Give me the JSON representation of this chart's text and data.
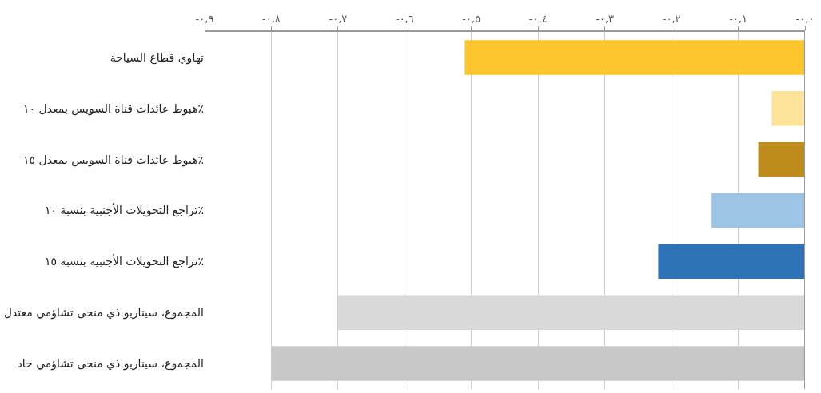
{
  "chart_data": {
    "type": "bar",
    "orientation": "horizontal",
    "categories": [
      "تهاوي قطاع السياحة",
      "هبوط عائدات قناة السويس بمعدل ١٠٪",
      "هبوط عائدات قناة السويس بمعدل ١٥٪",
      "تراجع التحويلات الأجنبية بنسبة ١٠٪",
      "تراجع التحويلات الأجنبية بنسبة ١٥٪",
      "المجموع، سيناريو ذي منحى تشاؤمي معتدل",
      "المجموع، سيناريو ذي منحى تشاؤمي حاد"
    ],
    "values": [
      -0.51,
      -0.05,
      -0.07,
      -0.14,
      -0.22,
      -0.7,
      -0.8
    ],
    "colors": [
      "#fcc62c",
      "#fde49a",
      "#c08b1d",
      "#9dc3e6",
      "#2e72b8",
      "#d9d9d9",
      "#c8c8c8"
    ],
    "xlim": [
      -0.9,
      0
    ],
    "xticks": [
      {
        "value": -0.9,
        "label": "-٠,٩"
      },
      {
        "value": -0.8,
        "label": "-٠,٨"
      },
      {
        "value": -0.7,
        "label": "-٠,٧"
      },
      {
        "value": -0.6,
        "label": "-٠,٦"
      },
      {
        "value": -0.5,
        "label": "-٠,٥"
      },
      {
        "value": -0.4,
        "label": "-٠,٤"
      },
      {
        "value": -0.3,
        "label": "-٠,٣"
      },
      {
        "value": -0.2,
        "label": "-٠,٢"
      },
      {
        "value": -0.1,
        "label": "-٠,١"
      },
      {
        "value": 0,
        "label": "-٠,٠"
      }
    ],
    "grid": "x",
    "legend": false
  }
}
